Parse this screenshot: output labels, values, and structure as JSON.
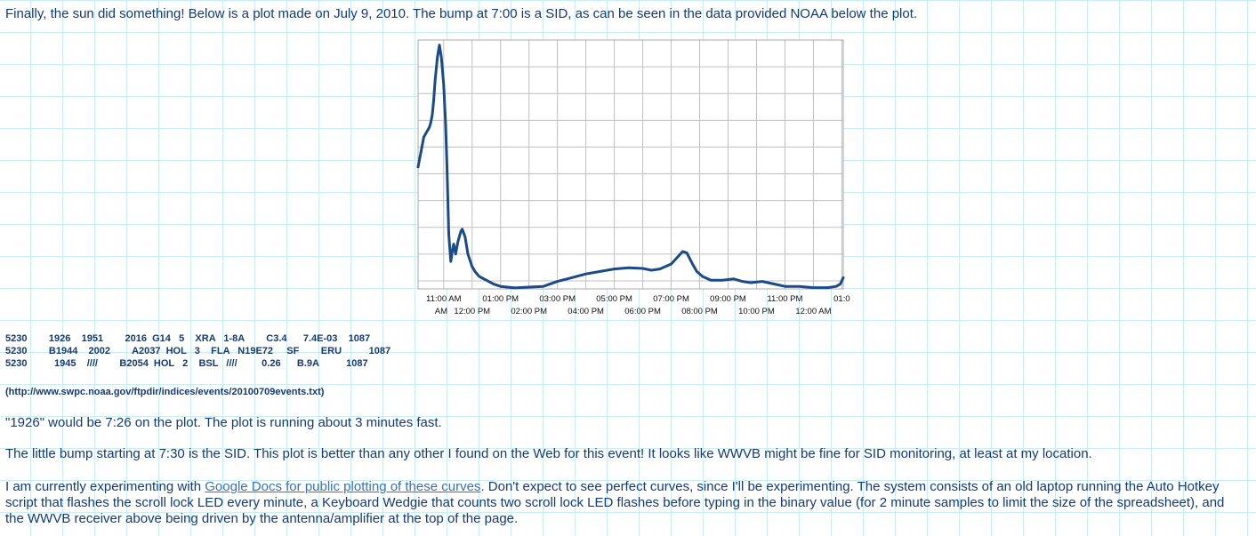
{
  "intro": "Finally, the sun did something! Below is a plot made on July 9, 2010. The bump at 7:00 is a SID, as can be seen in the data provided NOAA below the plot.",
  "chart_data": {
    "type": "line",
    "title": "",
    "xlabel": "",
    "ylabel": "",
    "grid": true,
    "x_tick_labels_upper": [
      "11:00 AM",
      "01:00 PM",
      "03:00 PM",
      "05:00 PM",
      "07:00 PM",
      "09:00 PM",
      "11:00 PM",
      "01:0"
    ],
    "x_tick_labels_lower": [
      "AM",
      "12:00 PM",
      "02:00 PM",
      "04:00 PM",
      "06:00 PM",
      "08:00 PM",
      "10:00 PM",
      "12:00 AM"
    ],
    "x_hours_range": [
      10.1,
      25.05
    ],
    "y_range": [
      0,
      1
    ],
    "series_color": "#1a4a8a",
    "series": [
      {
        "x": [
          10.1,
          10.15,
          10.22,
          10.3,
          10.4,
          10.5,
          10.55,
          10.6,
          10.65,
          10.7,
          10.78,
          10.85,
          10.92,
          11.0,
          11.07,
          11.12,
          11.18,
          11.25,
          11.3,
          11.35,
          11.42,
          11.5,
          11.6,
          11.65,
          11.75,
          11.85,
          12.0,
          12.1,
          12.25,
          12.5,
          12.75,
          13.0,
          13.5,
          14.0,
          14.5,
          15.0,
          15.5,
          16.0,
          16.5,
          17.0,
          17.5,
          18.0,
          18.3,
          18.6,
          19.0,
          19.4,
          19.55,
          19.75,
          19.9,
          20.1,
          20.4,
          20.8,
          21.2,
          21.5,
          21.8,
          22.2,
          22.6,
          23.0,
          23.5,
          24.0,
          24.5,
          24.8,
          24.95,
          25.05
        ],
        "y": [
          0.49,
          0.52,
          0.56,
          0.61,
          0.63,
          0.65,
          0.67,
          0.7,
          0.76,
          0.84,
          0.93,
          0.98,
          0.93,
          0.82,
          0.66,
          0.48,
          0.22,
          0.11,
          0.15,
          0.18,
          0.14,
          0.19,
          0.23,
          0.24,
          0.21,
          0.14,
          0.09,
          0.07,
          0.05,
          0.035,
          0.02,
          0.01,
          0.004,
          0.007,
          0.01,
          0.03,
          0.045,
          0.06,
          0.07,
          0.08,
          0.085,
          0.082,
          0.075,
          0.08,
          0.1,
          0.15,
          0.145,
          0.1,
          0.07,
          0.05,
          0.035,
          0.035,
          0.04,
          0.03,
          0.025,
          0.03,
          0.02,
          0.01,
          0.01,
          0.005,
          0.005,
          0.01,
          0.02,
          0.045
        ]
      }
    ]
  },
  "events": {
    "rows": [
      "5230        1926    1951        2016  G14   5    XRA   1-8A        C3.4      7.4E-03    1087",
      "5230        B1944    2002        A2037  HOL   3    FLA   N19E72     SF        ERU          1087",
      "5230          1945    ////        B2054  HOL   2    BSL   ////         0.26      B.9A          1087"
    ],
    "source": "(http://www.swpc.noaa.gov/ftpdir/indices/events/20100709events.txt)"
  },
  "paragraphs": {
    "p1": "\"1926\" would be 7:26 on the plot. The plot is running about 3 minutes fast.",
    "p2": "The little bump starting at 7:30 is the SID. This plot is better than any other I found on the Web for this event! It looks like WWVB might be fine for SID monitoring, at least at my location.",
    "p3_before": "I am currently experimenting with ",
    "p3_link": "Google Docs for public plotting of these curves",
    "p3_after": ". Don't expect to see perfect curves, since I'll be experimenting. The system consists of an old laptop running the Auto Hotkey script that flashes the scroll lock LED every minute, a Keyboard Wedgie that counts two scroll lock LED flashes before typing in the binary value (for 2 minute samples to limit the size of the spreadsheet), and the WWVB receiver above being driven by the antenna/amplifier at the top of the page."
  }
}
